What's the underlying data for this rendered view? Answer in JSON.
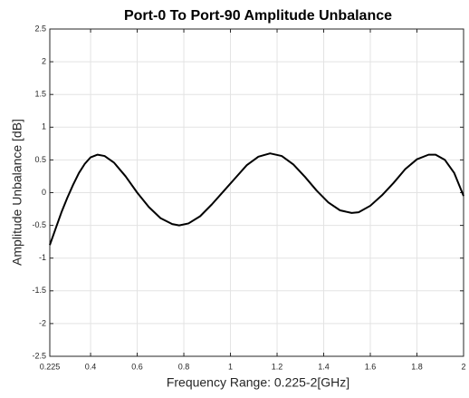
{
  "chart_data": {
    "type": "line",
    "title": "Port-0 To Port-90 Amplitude Unbalance",
    "x_label": "Frequency Range: 0.225-2[GHz]",
    "y_label": "Amplitude Unbalance [dB]",
    "xlim": [
      0.225,
      2
    ],
    "ylim": [
      -2.5,
      2.5
    ],
    "xticks": [
      0.225,
      0.4,
      0.6,
      0.8,
      1,
      1.2,
      1.4,
      1.6,
      1.8,
      2
    ],
    "yticks": [
      -2.5,
      -2,
      -1.5,
      -1,
      -0.5,
      0,
      0.5,
      1,
      1.5,
      2,
      2.5
    ],
    "grid": true,
    "series": [
      {
        "color": "#000000",
        "x": [
          0.225,
          0.25,
          0.275,
          0.3,
          0.325,
          0.35,
          0.375,
          0.4,
          0.43,
          0.46,
          0.5,
          0.55,
          0.6,
          0.65,
          0.7,
          0.75,
          0.78,
          0.82,
          0.87,
          0.92,
          0.97,
          1.02,
          1.07,
          1.12,
          1.17,
          1.22,
          1.27,
          1.32,
          1.37,
          1.42,
          1.47,
          1.52,
          1.55,
          1.6,
          1.65,
          1.7,
          1.75,
          1.8,
          1.85,
          1.88,
          1.92,
          1.96,
          2.0
        ],
        "values": [
          -0.8,
          -0.55,
          -0.3,
          -0.08,
          0.12,
          0.3,
          0.44,
          0.54,
          0.58,
          0.56,
          0.46,
          0.25,
          0.0,
          -0.22,
          -0.39,
          -0.48,
          -0.5,
          -0.47,
          -0.36,
          -0.18,
          0.02,
          0.22,
          0.42,
          0.55,
          0.6,
          0.56,
          0.43,
          0.24,
          0.03,
          -0.15,
          -0.27,
          -0.31,
          -0.3,
          -0.2,
          -0.04,
          0.15,
          0.36,
          0.51,
          0.58,
          0.58,
          0.5,
          0.3,
          -0.05
        ]
      }
    ]
  }
}
